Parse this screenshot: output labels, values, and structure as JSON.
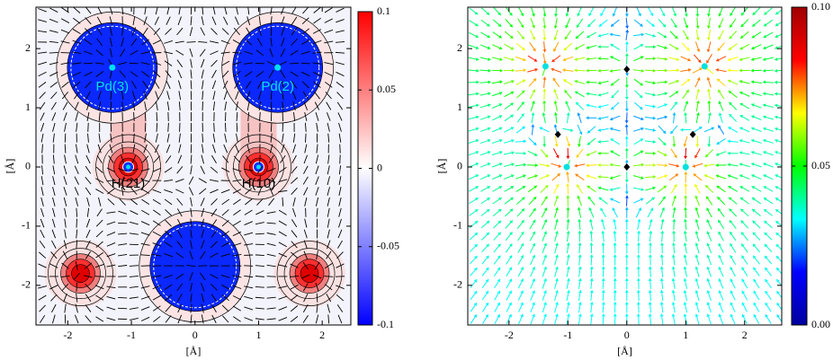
{
  "chart_data": [
    {
      "type": "heatmap",
      "xlabel": "[Å]",
      "ylabel": "[Å]",
      "xlim": [
        -2.5,
        2.45
      ],
      "ylim": [
        -2.67,
        2.7
      ],
      "xticks": [
        -2,
        -1,
        0,
        1,
        2
      ],
      "yticks": [
        -2,
        -1,
        0,
        1,
        2
      ],
      "colorbar_colors": [
        "#0000ff",
        "#ffffff",
        "#ff0000"
      ],
      "clim": [
        -0.1,
        0.1
      ],
      "cticks": [
        -0.1,
        -0.05,
        0,
        0.05,
        0.1
      ],
      "pd": {
        "x": [
          -1.3,
          1.3,
          0
        ],
        "y": [
          1.68,
          1.68,
          -1.68
        ],
        "labels": [
          "Pd(3)",
          "Pd(2)",
          null
        ],
        "color": "#00e0f0"
      },
      "h": {
        "x": [
          -1.05,
          1.0,
          -1.8,
          1.8
        ],
        "y": [
          0,
          0,
          -1.8,
          -1.8
        ],
        "labels": [
          "H(21)",
          "H(10)",
          null,
          null
        ],
        "color": "#00e0f0"
      }
    },
    {
      "type": "quiver",
      "xlabel": "[Å]",
      "ylabel": "[Å]",
      "xlim": [
        -2.7,
        2.63
      ],
      "ylim": [
        -2.67,
        2.7
      ],
      "xticks": [
        -2,
        -1,
        0,
        1,
        2
      ],
      "yticks": [
        -2,
        -1,
        0,
        1,
        2
      ],
      "colorbar_colors": [
        "#0000a0",
        "#0000ff",
        "#00ffff",
        "#00ff00",
        "#ffff00",
        "#ff0000",
        "#a00000"
      ],
      "clim": [
        0,
        0.1
      ],
      "cticks": [
        {
          "value": 0,
          "label": "0.00"
        },
        {
          "value": 0.05,
          "label": "0.05"
        },
        {
          "value": 0.1,
          "label": "0.10"
        }
      ],
      "markers": [
        {
          "shape": "circle",
          "color": "#00e0e0",
          "x": [
            -1.38,
            1.32,
            -1.02,
            1.0
          ],
          "y": [
            1.7,
            1.7,
            0,
            0
          ]
        },
        {
          "shape": "diamond",
          "color": "#000000",
          "x": [
            0,
            -1.17,
            1.12,
            0
          ],
          "y": [
            1.65,
            0.55,
            0.55,
            0
          ]
        }
      ]
    }
  ]
}
